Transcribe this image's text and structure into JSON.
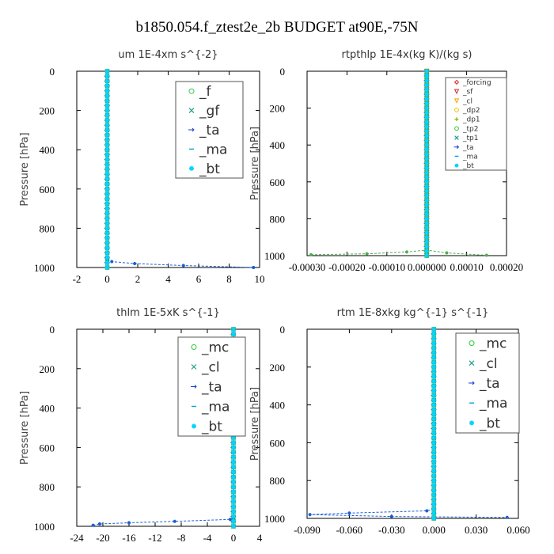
{
  "figure_title": "b1850.054.f_ztest2e_2b  BUDGET at90E,-75N",
  "chart_data": [
    {
      "id": "um",
      "type": "line",
      "title": "um   1E-4xm s^{-2}",
      "ylabel": "Pressure [hPa]",
      "xlim": [
        -2,
        10
      ],
      "ylim": [
        1000,
        0
      ],
      "xticks": [
        "-2",
        "0",
        "2",
        "4",
        "6",
        "8",
        "10"
      ],
      "xtick_values": [
        -2,
        0,
        2,
        4,
        6,
        8,
        10
      ],
      "yticks": [
        "0",
        "200",
        "400",
        "600",
        "800",
        "1000"
      ],
      "ytick_values": [
        0,
        200,
        400,
        600,
        800,
        1000
      ],
      "legend": {
        "position": "upper-right",
        "size": "large"
      },
      "series": [
        {
          "name": "_f",
          "color": "#2ecc40",
          "marker": "o",
          "x": [
            0,
            0
          ],
          "y": [
            0,
            1000
          ]
        },
        {
          "name": "_gf",
          "color": "#1f9e89",
          "marker": "x",
          "x": [
            0,
            0
          ],
          "y": [
            0,
            1000
          ]
        },
        {
          "name": "_ta",
          "color": "#1a3fd6",
          "marker": "arrow",
          "x": [
            0,
            0
          ],
          "y": [
            0,
            1000
          ]
        },
        {
          "name": "_ma",
          "color": "#00a6d6",
          "marker": "dash",
          "x": [
            0,
            0
          ],
          "y": [
            0,
            1000
          ]
        },
        {
          "name": "_bt",
          "color": "#00d4ff",
          "marker": "star",
          "x": [
            0,
            0
          ],
          "y": [
            0,
            1000
          ]
        }
      ],
      "surface_profile": {
        "color": "#1a5fd6",
        "x": [
          0,
          0.3,
          1.8,
          5.0,
          9.6
        ],
        "y": [
          960,
          970,
          980,
          990,
          1000
        ]
      }
    },
    {
      "id": "rtpthlp",
      "type": "line",
      "title": "rtpthlp  1E-4x(kg K)/(kg s)",
      "ylabel": "Pressure [hPa]",
      "xlim": [
        -0.0003,
        0.0002
      ],
      "ylim": [
        1000,
        0
      ],
      "xticks": [
        "-0.00030",
        "-0.00020",
        "-0.00010",
        "0.000000",
        "0.00010",
        "0.00020"
      ],
      "xtick_values": [
        -0.0003,
        -0.0002,
        -0.0001,
        0,
        0.0001,
        0.0002
      ],
      "yticks": [
        "0",
        "200",
        "400",
        "600",
        "800",
        "1000"
      ],
      "ytick_values": [
        0,
        200,
        400,
        600,
        800,
        1000
      ],
      "legend": {
        "position": "upper-right",
        "size": "small"
      },
      "series": [
        {
          "name": "_forcing",
          "color": "#e0201b",
          "marker": "diamond",
          "x": [
            0,
            0
          ],
          "y": [
            0,
            1000
          ]
        },
        {
          "name": "_sf",
          "color": "#d42a2a",
          "marker": "triangle",
          "x": [
            0,
            0
          ],
          "y": [
            0,
            1000
          ]
        },
        {
          "name": "_cl",
          "color": "#f4a300",
          "marker": "triangle",
          "x": [
            0,
            0
          ],
          "y": [
            0,
            1000
          ]
        },
        {
          "name": "_dp2",
          "color": "#f2c200",
          "marker": "o",
          "x": [
            0,
            0
          ],
          "y": [
            0,
            1000
          ]
        },
        {
          "name": "_dp1",
          "color": "#7ab800",
          "marker": "plus",
          "x": [
            0,
            0
          ],
          "y": [
            0,
            1000
          ]
        },
        {
          "name": "_tp2",
          "color": "#2ecc40",
          "marker": "o",
          "x": [
            0,
            0
          ],
          "y": [
            0,
            1000
          ]
        },
        {
          "name": "_tp1",
          "color": "#1f9e89",
          "marker": "x",
          "x": [
            0,
            0
          ],
          "y": [
            0,
            1000
          ]
        },
        {
          "name": "_ta",
          "color": "#1a3fd6",
          "marker": "arrow",
          "x": [
            0,
            0
          ],
          "y": [
            0,
            1000
          ]
        },
        {
          "name": "_ma",
          "color": "#00a6d6",
          "marker": "dash",
          "x": [
            0,
            0
          ],
          "y": [
            0,
            1000
          ]
        },
        {
          "name": "_bt",
          "color": "#00d4ff",
          "marker": "star",
          "x": [
            0,
            0
          ],
          "y": [
            0,
            1000
          ]
        }
      ],
      "surface_profile": {
        "color": "#4caf50",
        "x": [
          -0.00029,
          -0.00015,
          -5e-05,
          0,
          5e-05,
          0.00015
        ],
        "y": [
          995,
          990,
          980,
          970,
          985,
          998
        ]
      }
    },
    {
      "id": "thlm",
      "type": "line",
      "title": "thlm   1E-5xK s^{-1}",
      "ylabel": "Pressure [hPa]",
      "xlim": [
        -24,
        4
      ],
      "ylim": [
        1000,
        0
      ],
      "xticks": [
        "-24",
        "-20",
        "-16",
        "-12",
        "-8",
        "-4",
        "0",
        "4"
      ],
      "xtick_values": [
        -24,
        -20,
        -16,
        -12,
        -8,
        -4,
        0,
        4
      ],
      "yticks": [
        "0",
        "200",
        "400",
        "600",
        "800",
        "1000"
      ],
      "ytick_values": [
        0,
        200,
        400,
        600,
        800,
        1000
      ],
      "legend": {
        "position": "upper-right",
        "size": "large"
      },
      "series": [
        {
          "name": "_mc",
          "color": "#2ecc40",
          "marker": "o",
          "x": [
            0,
            0
          ],
          "y": [
            0,
            1000
          ]
        },
        {
          "name": "_cl",
          "color": "#1f9e89",
          "marker": "x",
          "x": [
            0,
            0
          ],
          "y": [
            0,
            1000
          ]
        },
        {
          "name": "_ta",
          "color": "#1a3fd6",
          "marker": "arrow",
          "x": [
            0,
            0
          ],
          "y": [
            0,
            1000
          ]
        },
        {
          "name": "_ma",
          "color": "#00a6d6",
          "marker": "dash",
          "x": [
            0,
            0
          ],
          "y": [
            0,
            1000
          ]
        },
        {
          "name": "_bt",
          "color": "#00d4ff",
          "marker": "star",
          "x": [
            0,
            0
          ],
          "y": [
            0,
            1000
          ]
        }
      ],
      "surface_profile": {
        "color": "#1a5fd6",
        "x": [
          0,
          -0.5,
          -9,
          -16,
          -20.5,
          -21.5
        ],
        "y": [
          960,
          965,
          975,
          982,
          988,
          995
        ]
      }
    },
    {
      "id": "rtm",
      "type": "line",
      "title": "rtm   1E-8xkg kg^{-1} s^{-1}",
      "ylabel": "Pressure [hPa]",
      "xlim": [
        -0.09,
        0.06
      ],
      "ylim": [
        1000,
        0
      ],
      "xticks": [
        "-0.090",
        "-0.060",
        "-0.030",
        "0.000",
        "0.030",
        "0.060"
      ],
      "xtick_values": [
        -0.09,
        -0.06,
        -0.03,
        0,
        0.03,
        0.06
      ],
      "yticks": [
        "0",
        "200",
        "400",
        "600",
        "800",
        "1000"
      ],
      "ytick_values": [
        0,
        200,
        400,
        600,
        800,
        1000
      ],
      "legend": {
        "position": "upper-right",
        "size": "large"
      },
      "series": [
        {
          "name": "_mc",
          "color": "#2ecc40",
          "marker": "o",
          "x": [
            0,
            0
          ],
          "y": [
            0,
            1000
          ]
        },
        {
          "name": "_cl",
          "color": "#1f9e89",
          "marker": "x",
          "x": [
            0,
            0
          ],
          "y": [
            0,
            1000
          ]
        },
        {
          "name": "_ta",
          "color": "#1a3fd6",
          "marker": "arrow",
          "x": [
            0,
            0
          ],
          "y": [
            0,
            1000
          ]
        },
        {
          "name": "_ma",
          "color": "#00a6d6",
          "marker": "dash",
          "x": [
            0,
            0
          ],
          "y": [
            0,
            1000
          ]
        },
        {
          "name": "_bt",
          "color": "#00d4ff",
          "marker": "star",
          "x": [
            0,
            0
          ],
          "y": [
            0,
            1000
          ]
        }
      ],
      "surface_profile": {
        "color": "#1a5fd6",
        "x": [
          0,
          -0.005,
          -0.06,
          -0.088,
          -0.03,
          0.052
        ],
        "y": [
          950,
          960,
          972,
          980,
          990,
          995
        ]
      }
    }
  ]
}
